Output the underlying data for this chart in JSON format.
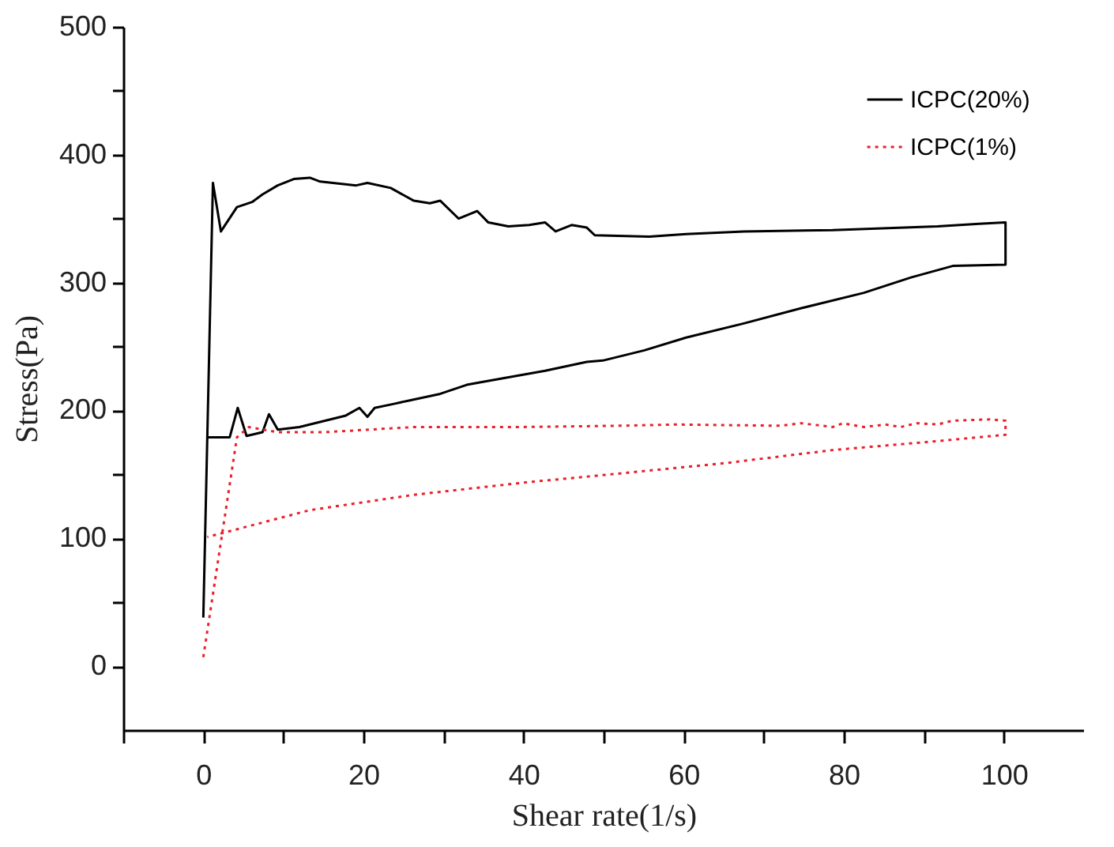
{
  "chart_data": {
    "type": "line",
    "xlabel": "Shear rate(1/s)",
    "ylabel": "Stress(Pa)",
    "xlim": [
      -10,
      110
    ],
    "ylim": [
      -50,
      500
    ],
    "xticks": [
      {
        "value": -10,
        "label": null
      },
      0,
      {
        "value": 10,
        "label": null
      },
      20,
      {
        "value": 30,
        "label": null
      },
      40,
      {
        "value": 50,
        "label": null
      },
      60,
      {
        "value": 70,
        "label": null
      },
      80,
      {
        "value": 90,
        "label": null
      },
      100
    ],
    "yticks": [
      0,
      {
        "value": 50,
        "label": null
      },
      100,
      {
        "value": 150,
        "label": null
      },
      200,
      {
        "value": 250,
        "label": null
      },
      300,
      {
        "value": 350,
        "label": null
      },
      400,
      {
        "value": 450,
        "label": null
      },
      500
    ],
    "grid": false,
    "legend": "top right",
    "marker": "none",
    "series": [
      {
        "name": "ICPC(20%)",
        "color": "#000000",
        "line_style": "solid",
        "x": [
          0,
          1.2,
          2.2,
          4.2,
          6.1,
          7.4,
          9.3,
          11.3,
          13.3,
          14.6,
          19.1,
          20.5,
          23.4,
          26.3,
          28.3,
          29.6,
          31.9,
          34.2,
          35.6,
          38.1,
          40.7,
          42.7,
          44,
          46,
          47.9,
          48.9,
          55.7,
          60.3,
          67.5,
          78.6,
          91.7,
          96.9,
          100.2,
          100.2,
          93.6,
          88.4,
          82.5,
          74.7,
          67.5,
          60.3,
          55.1,
          49.9,
          47.9,
          42.7,
          35.5,
          32.9,
          29.6,
          23.7,
          21.4,
          20.5,
          19.5,
          17.8,
          14.6,
          12,
          9.3,
          8.2,
          7.4,
          5.4,
          4.3,
          3.3,
          0.5
        ],
        "values": [
          38,
          378,
          340,
          359,
          363,
          369,
          376,
          381,
          382,
          379,
          376,
          378,
          374,
          364,
          362,
          364,
          350,
          356,
          347,
          344,
          345,
          347,
          340,
          345,
          343,
          337,
          336,
          338,
          340,
          341,
          344,
          346,
          347,
          314,
          313,
          304,
          292,
          280,
          268,
          257,
          247,
          239,
          238,
          231,
          223,
          220,
          213,
          205,
          202,
          195,
          202,
          196,
          191,
          187,
          185,
          197,
          183,
          180,
          202,
          179,
          179
        ]
      },
      {
        "name": "ICPC(1%)",
        "color": "#e8202a",
        "line_style": "dotted",
        "x": [
          0,
          4.2,
          5.7,
          9.3,
          15.2,
          26.3,
          39.4,
          51.8,
          59,
          72.1,
          74.7,
          78.6,
          79.9,
          82.5,
          85.2,
          87.1,
          89.1,
          91.7,
          93.6,
          98.2,
          100.2,
          100.2,
          91.7,
          78.6,
          65.5,
          52.5,
          45.9,
          40.7,
          26.3,
          13.3,
          0.5
        ],
        "values": [
          7,
          179,
          187,
          183,
          183,
          187,
          187,
          188,
          189,
          188,
          190,
          187,
          190,
          187,
          189,
          187,
          190,
          189,
          192,
          193,
          192,
          181,
          176,
          169,
          159,
          151,
          147,
          144,
          134,
          122,
          101
        ]
      }
    ]
  }
}
